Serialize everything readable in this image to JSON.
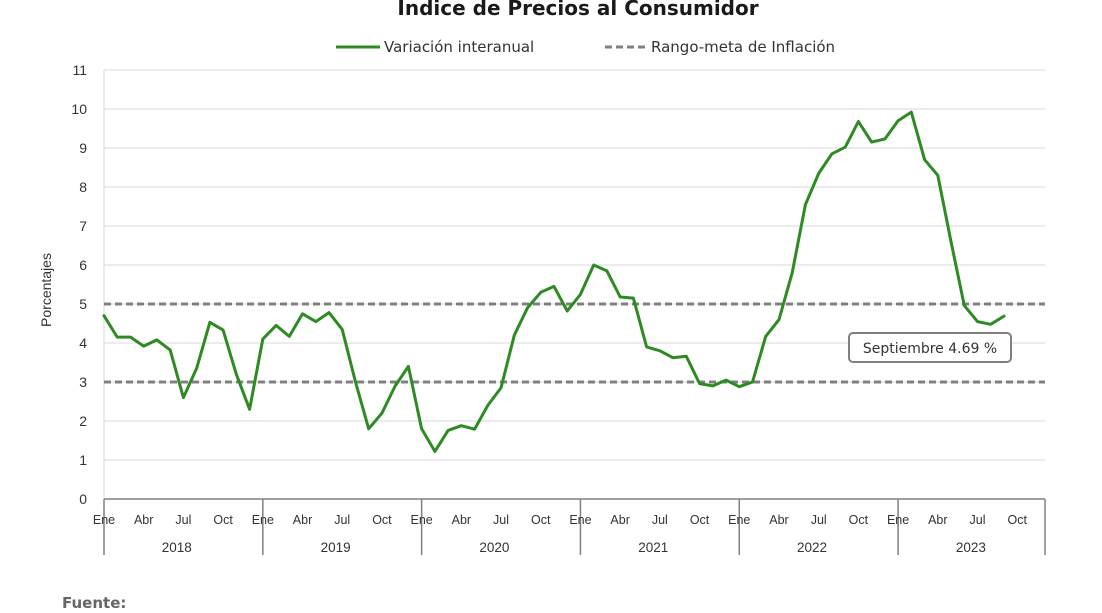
{
  "chart_data": {
    "type": "line",
    "title": "Indice de Precios al Consumidor",
    "ylabel": "Porcentajes",
    "xlabel": "",
    "ylim": [
      0,
      11
    ],
    "yticks": [
      0,
      1,
      2,
      3,
      4,
      5,
      6,
      7,
      8,
      9,
      10,
      11
    ],
    "grid": true,
    "legend_position": "top",
    "month_tick_labels": [
      "Ene",
      "Abr",
      "Jul",
      "Oct"
    ],
    "years": [
      "2018",
      "2019",
      "2020",
      "2021",
      "2022",
      "2023"
    ],
    "series": [
      {
        "name": "Variación interanual",
        "color": "#2e8b23",
        "style": "solid",
        "values": [
          4.7,
          4.15,
          4.15,
          3.92,
          4.08,
          3.82,
          2.6,
          3.35,
          4.53,
          4.33,
          3.2,
          2.3,
          4.1,
          4.45,
          4.17,
          4.75,
          4.55,
          4.78,
          4.35,
          3.0,
          1.8,
          2.2,
          2.9,
          3.4,
          1.8,
          1.22,
          1.76,
          1.88,
          1.79,
          2.4,
          2.85,
          4.2,
          4.9,
          5.3,
          5.45,
          4.82,
          5.25,
          6.0,
          5.85,
          5.18,
          5.15,
          3.9,
          3.8,
          3.62,
          3.66,
          2.96,
          2.9,
          3.05,
          2.88,
          3.0,
          4.17,
          4.6,
          5.8,
          7.55,
          8.35,
          8.85,
          9.02,
          9.68,
          9.15,
          9.23,
          9.7,
          9.92,
          8.7,
          8.3,
          6.6,
          4.96,
          4.55,
          4.48,
          4.69
        ]
      },
      {
        "name": "Rango-meta de Inflación",
        "color": "#808080",
        "style": "dashed",
        "bounds": [
          3,
          5
        ]
      }
    ],
    "annotation": {
      "text": "Septiembre 4.69 %"
    }
  },
  "source_label": "Fuente:"
}
